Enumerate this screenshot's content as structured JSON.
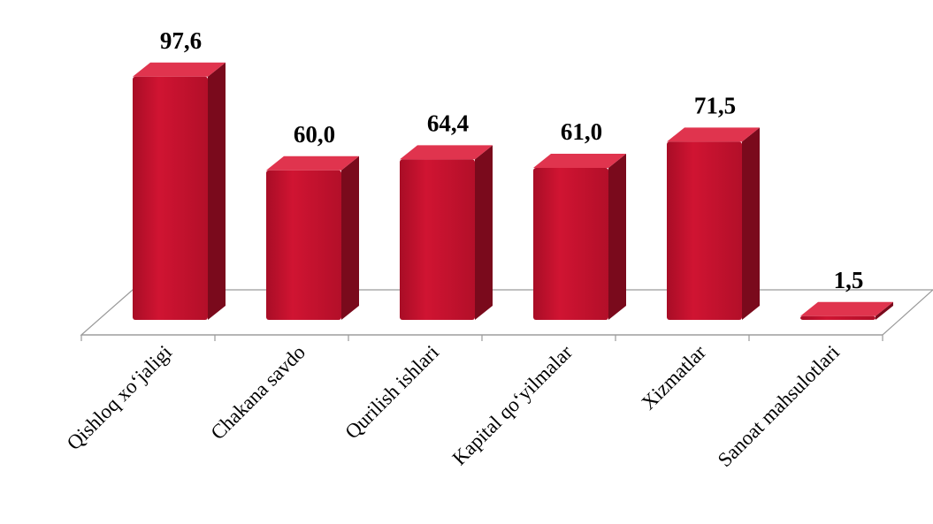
{
  "chart_data": {
    "type": "bar",
    "categories": [
      "Qishloq xo‘jaligi",
      "Chakana savdo",
      "Qurilish ishlari",
      "Kapital qo‘yilmalar",
      "Xizmatlar",
      "Sanoat mahsulotlari"
    ],
    "values": [
      97.6,
      60.0,
      64.4,
      61.0,
      71.5,
      1.5
    ],
    "value_labels": [
      "97,6",
      "60,0",
      "64,4",
      "61,0",
      "71,5",
      "1,5"
    ],
    "title": "",
    "xlabel": "",
    "ylabel": "",
    "ylim": [
      0,
      100
    ],
    "grid": false,
    "legend": "none",
    "style": "3d-column",
    "colors": {
      "bar_front": "#c8102e",
      "bar_side": "#7a0a1c",
      "bar_top": "#e0344e",
      "floor": "#ffffff",
      "floor_stroke": "#9a9a9a"
    }
  }
}
